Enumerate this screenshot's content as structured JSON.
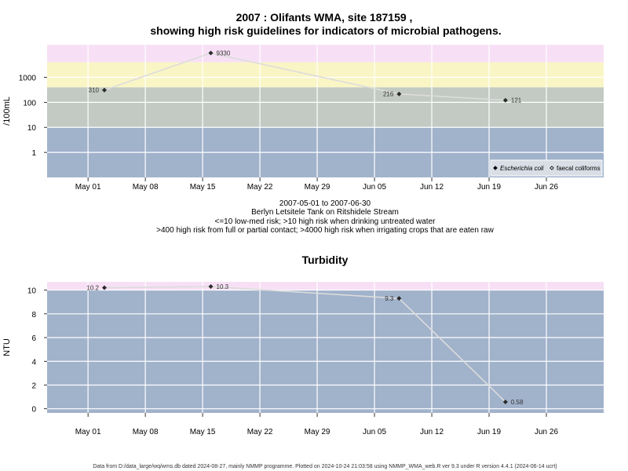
{
  "titles": {
    "line1": "2007 : Olifants WMA, site 187159 ,",
    "line2": "showing high risk guidelines for indicators of microbial pathogens."
  },
  "caption": {
    "line1": "2007-05-01 to 2007-06-30",
    "line2": "Berlyn Letsitele Tank on Ritshidele Stream",
    "line3": "<=10 low-med risk; >10 high risk when drinking untreated water",
    "line4": ">400 high risk from full or partial contact; >4000 high risk when irrigating crops that are eaten raw"
  },
  "footer": "Data from D:/data_large/wq/wms.db dated 2024-08-27, mainly NMMP programme. Plotted on 2024-10-24 21:03:58 using NMMP_WMA_web.R ver 9.3 under R version 4.4.1 (2024-06-14 ucrt)",
  "colors": {
    "band_low": "#a1b2cb",
    "band_high_drinking": "#c2cac3",
    "band_contact": "#faf5c5",
    "band_irrigation": "#f7e0f5",
    "turb_low": "#a1b2cb",
    "turb_high": "#f7e0f5",
    "grid": "#ffffff",
    "line": "#dcdcdc",
    "point": "#2b2b2b"
  },
  "chart_data": [
    {
      "type": "line",
      "title": "",
      "ylabel": "/100mL",
      "xlabel": "",
      "yscale": "log",
      "ylim": [
        0.1,
        20000
      ],
      "xlim": [
        "2007-04-26",
        "2007-07-03"
      ],
      "x_ticks": [
        "2007-05-01",
        "2007-05-08",
        "2007-05-15",
        "2007-05-22",
        "2007-05-29",
        "2007-06-05",
        "2007-06-12",
        "2007-06-19",
        "2007-06-26"
      ],
      "x_tick_labels": [
        "May 01",
        "May 08",
        "May 15",
        "May 22",
        "May 29",
        "Jun 05",
        "Jun 12",
        "Jun 19",
        "Jun 26"
      ],
      "y_ticks": [
        1,
        10,
        100,
        1000
      ],
      "y_tick_labels": [
        "1",
        "10",
        "100",
        "1000"
      ],
      "bands": [
        {
          "from": 0.1,
          "to": 10,
          "color_key": "band_low"
        },
        {
          "from": 10,
          "to": 400,
          "color_key": "band_high_drinking"
        },
        {
          "from": 400,
          "to": 4000,
          "color_key": "band_contact"
        },
        {
          "from": 4000,
          "to": 20000,
          "color_key": "band_irrigation"
        }
      ],
      "grid": true,
      "legend_position": "bottom-right",
      "legend": [
        {
          "label": "Escherichia coli",
          "marker": "filled-diamond",
          "italic": true
        },
        {
          "label": "faecal coliforms",
          "marker": "open-diamond",
          "italic": false
        }
      ],
      "series": [
        {
          "name": "Escherichia coli",
          "points": [
            {
              "x": "2007-05-03",
              "y": 310,
              "label": "310",
              "label_side": "left"
            },
            {
              "x": "2007-05-16",
              "y": 9330,
              "label": "9330",
              "label_side": "right"
            },
            {
              "x": "2007-06-08",
              "y": 216,
              "label": "216",
              "label_side": "left"
            },
            {
              "x": "2007-06-21",
              "y": 121,
              "label": "121",
              "label_side": "right"
            }
          ]
        }
      ]
    },
    {
      "type": "line",
      "title": "Turbidity",
      "ylabel": "NTU",
      "xlabel": "",
      "yscale": "linear",
      "ylim": [
        -0.35,
        10.7
      ],
      "xlim": [
        "2007-04-26",
        "2007-07-03"
      ],
      "x_ticks": [
        "2007-05-01",
        "2007-05-08",
        "2007-05-15",
        "2007-05-22",
        "2007-05-29",
        "2007-06-05",
        "2007-06-12",
        "2007-06-19",
        "2007-06-26"
      ],
      "x_tick_labels": [
        "May 01",
        "May 08",
        "May 15",
        "May 22",
        "May 29",
        "Jun 05",
        "Jun 12",
        "Jun 19",
        "Jun 26"
      ],
      "y_ticks": [
        0,
        2,
        4,
        6,
        8,
        10
      ],
      "y_tick_labels": [
        "0",
        "2",
        "4",
        "6",
        "8",
        "10"
      ],
      "bands": [
        {
          "from": -0.35,
          "to": 10,
          "color_key": "turb_low"
        },
        {
          "from": 10,
          "to": 10.7,
          "color_key": "turb_high"
        }
      ],
      "grid": true,
      "series": [
        {
          "name": "",
          "points": [
            {
              "x": "2007-05-03",
              "y": 10.2,
              "label": "10.2",
              "label_side": "left"
            },
            {
              "x": "2007-05-16",
              "y": 10.3,
              "label": "10.3",
              "label_side": "right"
            },
            {
              "x": "2007-06-08",
              "y": 9.3,
              "label": "9.3",
              "label_side": "left"
            },
            {
              "x": "2007-06-21",
              "y": 0.58,
              "label": "0.58",
              "label_side": "right"
            }
          ]
        }
      ]
    }
  ]
}
